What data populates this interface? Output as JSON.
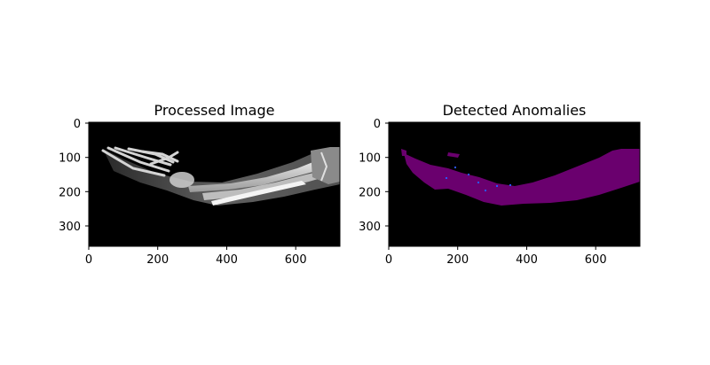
{
  "chart_data": [
    {
      "type": "image",
      "title": "Processed Image",
      "colormap": "grayscale",
      "xlim": [
        0,
        728
      ],
      "ylim": [
        360,
        0
      ],
      "xticks": [
        0,
        200,
        400,
        600
      ],
      "yticks": [
        0,
        100,
        200,
        300
      ],
      "xlabel": "",
      "ylabel": "",
      "grid": false,
      "image_content": "x-ray of forearm with hand and wrist, white bones on black background",
      "colors": {
        "background": "#000000",
        "bone": "#d8d8d8",
        "soft_tissue": "#5a5a5a"
      }
    },
    {
      "type": "image",
      "title": "Detected Anomalies",
      "colormap": "anomaly-mask",
      "xlim": [
        0,
        728
      ],
      "ylim": [
        360,
        0
      ],
      "xticks": [
        0,
        200,
        400,
        600
      ],
      "yticks": [
        0,
        100,
        200,
        300
      ],
      "xlabel": "",
      "ylabel": "",
      "grid": false,
      "image_content": "purple mask covering the forearm region with small blue speckles, black background",
      "colors": {
        "background": "#000000",
        "mask": "#6a006e",
        "speckle": "#2b55ff"
      }
    }
  ]
}
